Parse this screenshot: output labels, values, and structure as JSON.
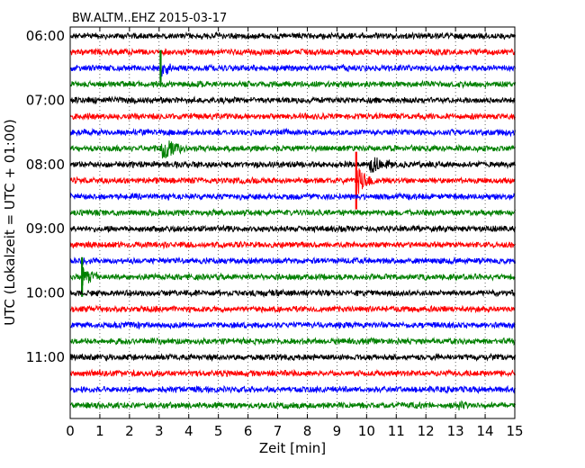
{
  "chart_data": {
    "type": "line",
    "title": "BW.ALTM..EHZ 2015-03-17",
    "xlabel": "Zeit  [min]",
    "ylabel": "UTC (Lokalzeit = UTC + 01:00)",
    "xlim": [
      0,
      15
    ],
    "x_ticks": [
      "0",
      "1",
      "2",
      "3",
      "4",
      "5",
      "6",
      "7",
      "8",
      "9",
      "10",
      "11",
      "12",
      "13",
      "14",
      "15"
    ],
    "y_tick_labels": [
      "06:00",
      "07:00",
      "08:00",
      "09:00",
      "10:00",
      "11:00"
    ],
    "grid": "vertical dotted lines at each minute",
    "series_colors": [
      "#000000",
      "#ff0000",
      "#0000ff",
      "#008000"
    ],
    "traces_start": "06:00",
    "trace_interval_min": 15,
    "trace_count": 24,
    "events": [
      {
        "trace": 2,
        "time_min": 3.05,
        "spike": 20,
        "coda_amp": 9,
        "coda_len": 0.5,
        "color": "#008000",
        "note": "large spike spanning several traces"
      },
      {
        "trace": 7,
        "time_min": 3.05,
        "spike": 3,
        "coda_amp": 16,
        "coda_len": 0.7,
        "color": "#008000"
      },
      {
        "trace": 8,
        "time_min": 10.1,
        "spike": 0,
        "coda_amp": 9,
        "coda_len": 0.8,
        "color": "#000000"
      },
      {
        "trace": 9,
        "time_min": 9.65,
        "spike": 32,
        "coda_amp": 16,
        "coda_len": 0.6,
        "color": "#ff0000",
        "note": "large spike spanning several traces"
      },
      {
        "trace": 15,
        "time_min": 0.4,
        "spike": 22,
        "coda_amp": 11,
        "coda_len": 0.5,
        "color": "#008000"
      },
      {
        "trace": 23,
        "time_min": 13.1,
        "spike": 0,
        "coda_amp": 4,
        "coda_len": 0.4,
        "color": "#008000"
      }
    ]
  }
}
